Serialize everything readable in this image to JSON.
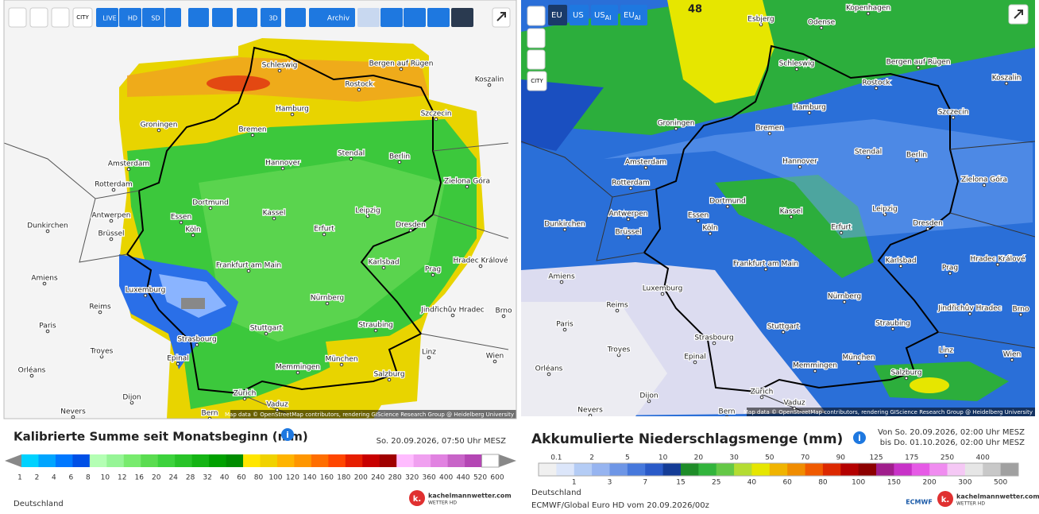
{
  "left_panel": {
    "toolbar": [
      "CITY",
      "LIVE",
      "HD",
      "SD",
      "3D",
      "Archiv"
    ],
    "cities": [
      "Schleswig",
      "Bergen auf Rügen",
      "Rostock",
      "Hamburg",
      "Koszalin",
      "Szczecin",
      "Groningen",
      "Bremen",
      "Stendal",
      "Berlin",
      "Amsterdam",
      "Hannover",
      "Rotterdam",
      "Zielona Góra",
      "Dortmund",
      "Essen",
      "Kassel",
      "Leipzig",
      "Antwerpen",
      "Köln",
      "Erfurt",
      "Dresden",
      "Dunkirchen",
      "Brüssel",
      "Karlsbad",
      "Prag",
      "Frankfurt am Main",
      "Amiens",
      "Hradec Králové",
      "Luxemburg",
      "Nürnberg",
      "Reims",
      "Jindřichův Hradec",
      "Paris",
      "Stuttgart",
      "Straubing",
      "Strasbourg",
      "Troyes",
      "Linz",
      "Wien",
      "Epinal",
      "München",
      "Memmingen",
      "Salzburg",
      "Orléans",
      "Dijon",
      "Zürich",
      "Vaduz",
      "Nevers",
      "Bern",
      "Brno"
    ],
    "attribution": "Map data © OpenStreetMap contributors, rendering GIScience Research Group @ Heidelberg University",
    "title": "Kalibrierte Summe seit Monatsbeginn (mm)",
    "timestamp": "So. 20.09.2026, 07:50 Uhr MESZ",
    "scale_labels": [
      1,
      2,
      4,
      6,
      8,
      10,
      12,
      16,
      20,
      24,
      28,
      32,
      40,
      60,
      80,
      100,
      120,
      140,
      160,
      180,
      200,
      240,
      280,
      320,
      360,
      400,
      440,
      520,
      600
    ],
    "region": "Deutschland",
    "logo": {
      "name": "kachelmannwetter.com",
      "tagline": "WETTER HD"
    }
  },
  "right_panel": {
    "tabs": [
      {
        "text": "EU"
      },
      {
        "text": "US"
      },
      {
        "text": "US",
        "sub": "AI"
      },
      {
        "text": "EU",
        "sub": "AI"
      }
    ],
    "city_button": "CITY",
    "map_label": "48",
    "cities": [
      "Schleswig",
      "Bergen auf Rügen",
      "Rostock",
      "Hamburg",
      "Koszalin",
      "Szczecin",
      "Groningen",
      "Bremen",
      "Stendal",
      "Berlin",
      "Amsterdam",
      "Hannover",
      "Rotterdam",
      "Zielona Góra",
      "Dortmund",
      "Essen",
      "Kassel",
      "Leipzig",
      "Antwerpen",
      "Köln",
      "Erfurt",
      "Dresden",
      "Dunkirchen",
      "Brüssel",
      "Karlsbad",
      "Prag",
      "Frankfurt am Main",
      "Amiens",
      "Hradec Králové",
      "Luxemburg",
      "Nürnberg",
      "Reims",
      "Jindřichův Hradec",
      "Paris",
      "Stuttgart",
      "Straubing",
      "Strasbourg",
      "Troyes",
      "Linz",
      "Wien",
      "Epinal",
      "München",
      "Memmingen",
      "Salzburg",
      "Orléans",
      "Dijon",
      "Zürich",
      "Vaduz",
      "Nevers",
      "Bern",
      "Brno",
      "Kopenhagen",
      "Odense",
      "Esbjerg"
    ],
    "attribution": "Map data © OpenStreetMap contributors, rendering GIScience Research Group @ Heidelberg University",
    "title": "Akkumulierte Niederschlagsmenge (mm)",
    "period_from": "Von So. 20.09.2026, 02:00 Uhr MESZ",
    "period_to": "bis Do. 01.10.2026, 02:00 Uhr MESZ",
    "scale_labels": [
      0.1,
      1,
      2,
      3,
      5,
      7,
      10,
      15,
      20,
      25,
      30,
      40,
      50,
      60,
      70,
      80,
      90,
      100,
      125,
      150,
      175,
      200,
      250,
      300,
      400,
      500
    ],
    "region": "Deutschland",
    "model": "ECMWF/Global Euro HD vom 20.09.2026/00z",
    "model_logo": "ECMWF",
    "logo": {
      "name": "kachelmannwetter.com",
      "tagline": "WETTER HD"
    }
  }
}
